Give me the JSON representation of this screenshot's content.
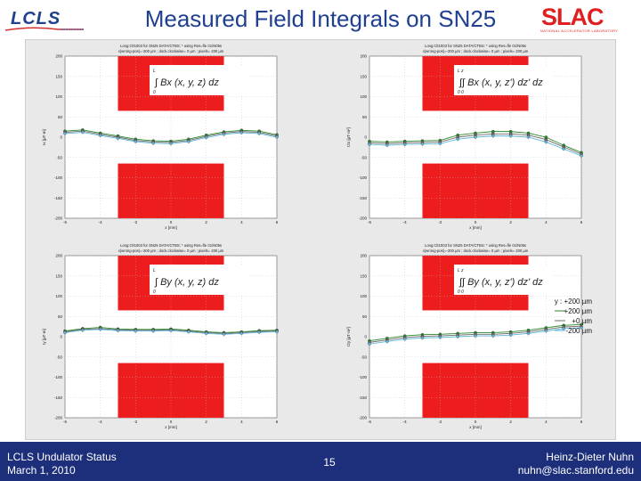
{
  "slide": {
    "title": "Measured Field Integrals on SN25",
    "logo_left": "LCLS",
    "logo_right": "SLAC",
    "logo_right_sub": "NATIONAL ACCELERATOR LABORATORY",
    "footer_left_line1": "LCLS Undulator Status",
    "footer_left_line2": "March 1, 2010",
    "page_number": "15",
    "footer_right_line1": "Heinz-Dieter Nuhn",
    "footer_right_line2": "nuhn@slac.stanford.edu"
  },
  "legend": {
    "title": "y : +200 µm",
    "entries": [
      "+200 µm",
      "+0 µm",
      "-200 µm"
    ]
  },
  "colors": {
    "title": "#1f3f8f",
    "footer_bg": "#1d2f7a",
    "red_box": "#ee1d1d",
    "series_plus": "#2a8a2a",
    "series_zero": "#6a6a6a",
    "series_minus": "#63b5d8"
  },
  "chart_data": [
    {
      "type": "line",
      "id": "tl",
      "header_line1": "Long:ClI1003 for SN25 DATA/CTBS: * using Res=fle 01/N05s",
      "header_line2": "x(wrong-pos)=-200 µm ; dock.clockwise= 0 µm ; pixels= 200 µm",
      "formula_main": "∫ Bx (x, y, z) dz",
      "formula_lower": "0",
      "formula_upper": "L",
      "xlabel": "x [mm]",
      "ylabel": "Ix [µT·m]",
      "xlim": [
        -6,
        6
      ],
      "ylim": [
        -200,
        200
      ],
      "xticks": [
        -6,
        -4,
        -2,
        0,
        2,
        4,
        6
      ],
      "xtick_labels": [
        "-6",
        "-4",
        "-2",
        "0",
        "2",
        "4",
        "6"
      ],
      "yticks": [
        -200,
        -150,
        -100,
        -50,
        0,
        50,
        100,
        150,
        200
      ],
      "ytick_labels": [
        "-200",
        "-150",
        "-100",
        "-50",
        "0",
        "50",
        "100",
        "150",
        "200"
      ],
      "red_boxes": [
        {
          "x": [
            -3,
            3
          ],
          "y": [
            65,
            200
          ]
        },
        {
          "x": [
            -3,
            3
          ],
          "y": [
            -200,
            -65
          ]
        }
      ],
      "x": [
        -6,
        -5,
        -4,
        -3,
        -2,
        -1,
        0,
        1,
        2,
        3,
        4,
        5,
        6
      ],
      "series": [
        {
          "name": "+200 µm",
          "values": [
            15,
            18,
            10,
            3,
            -5,
            -9,
            -10,
            -5,
            5,
            13,
            17,
            15,
            6
          ]
        },
        {
          "name": "+0 µm",
          "values": [
            12,
            15,
            7,
            0,
            -8,
            -12,
            -13,
            -8,
            2,
            10,
            14,
            12,
            3
          ]
        },
        {
          "name": "-200 µm",
          "values": [
            9,
            12,
            4,
            -3,
            -11,
            -15,
            -16,
            -11,
            -1,
            7,
            11,
            9,
            0
          ]
        }
      ]
    },
    {
      "type": "line",
      "id": "tr",
      "header_line1": "Long:ClI1003 for SN25 DATA/CTBS: * using Res=fle 01/N05s",
      "header_line2": "x(wrong-pos)=-200 µm ; dock.clockwise= 0 µm ; pixels= 200 µm",
      "formula_main": "∫∫ Bx (x, y, z') dz' dz",
      "formula_lower": "0 0",
      "formula_upper": "L z",
      "xlabel": "x [mm]",
      "ylabel": "I2x [µT·m²]",
      "xlim": [
        -6,
        6
      ],
      "ylim": [
        -200,
        200
      ],
      "xticks": [
        -6,
        -4,
        -2,
        0,
        2,
        4,
        6
      ],
      "xtick_labels": [
        "-6",
        "-4",
        "-2",
        "0",
        "2",
        "4",
        "6"
      ],
      "yticks": [
        -200,
        -150,
        -100,
        -50,
        0,
        50,
        100,
        150,
        200
      ],
      "ytick_labels": [
        "-200",
        "-150",
        "-100",
        "-50",
        "0",
        "50",
        "100",
        "150",
        "200"
      ],
      "red_boxes": [
        {
          "x": [
            -3,
            3
          ],
          "y": [
            65,
            200
          ]
        },
        {
          "x": [
            -3,
            3
          ],
          "y": [
            -200,
            -65
          ]
        }
      ],
      "x": [
        -6,
        -5,
        -4,
        -3,
        -2,
        -1,
        0,
        1,
        2,
        3,
        4,
        5,
        6
      ],
      "series": [
        {
          "name": "+200 µm",
          "values": [
            -10,
            -12,
            -10,
            -9,
            -8,
            5,
            10,
            14,
            14,
            10,
            0,
            -20,
            -38
          ]
        },
        {
          "name": "+0 µm",
          "values": [
            -14,
            -16,
            -14,
            -13,
            -12,
            0,
            5,
            8,
            8,
            5,
            -6,
            -24,
            -42
          ]
        },
        {
          "name": "-200 µm",
          "values": [
            -18,
            -20,
            -18,
            -17,
            -16,
            -5,
            0,
            3,
            3,
            0,
            -12,
            -29,
            -46
          ]
        }
      ]
    },
    {
      "type": "line",
      "id": "bl",
      "header_line1": "Long:ClI1003 for SN25 DATA/CTBS: * using Res=fle 01/N05s",
      "header_line2": "x(wrong-pos)=-200 µm ; dock.clockwise= 0 µm ; pixels= 200 µm",
      "formula_main": "∫ By (x, y, z) dz",
      "formula_lower": "0",
      "formula_upper": "L",
      "xlabel": "x [mm]",
      "ylabel": "Iy [µT·m]",
      "xlim": [
        -6,
        6
      ],
      "ylim": [
        -200,
        200
      ],
      "xticks": [
        -6,
        -4,
        -2,
        0,
        2,
        4,
        6
      ],
      "xtick_labels": [
        "-6",
        "-4",
        "-2",
        "0",
        "2",
        "4",
        "6"
      ],
      "yticks": [
        -200,
        -150,
        -100,
        -50,
        0,
        50,
        100,
        150,
        200
      ],
      "ytick_labels": [
        "-200",
        "-150",
        "-100",
        "-50",
        "0",
        "50",
        "100",
        "150",
        "200"
      ],
      "red_boxes": [
        {
          "x": [
            -3,
            3
          ],
          "y": [
            65,
            200
          ]
        },
        {
          "x": [
            -3,
            3
          ],
          "y": [
            -200,
            -65
          ]
        }
      ],
      "x": [
        -6,
        -5,
        -4,
        -3,
        -2,
        -1,
        0,
        1,
        2,
        3,
        4,
        5,
        6
      ],
      "series": [
        {
          "name": "+200 µm",
          "values": [
            14,
            20,
            23,
            19,
            18,
            18,
            19,
            16,
            12,
            10,
            12,
            15,
            16
          ]
        },
        {
          "name": "+0 µm",
          "values": [
            12,
            18,
            20,
            17,
            16,
            16,
            17,
            14,
            10,
            8,
            10,
            13,
            14
          ]
        },
        {
          "name": "-200 µm",
          "values": [
            10,
            16,
            18,
            15,
            14,
            14,
            15,
            12,
            8,
            6,
            8,
            11,
            12
          ]
        }
      ]
    },
    {
      "type": "line",
      "id": "br",
      "header_line1": "Long:ClI1003 for SN25 DATA/CTBS: * using Res=fle 01/N05s",
      "header_line2": "x(wrong-pos)=-200 µm ; dock.clockwise= 0 µm ; pixels= 200 µm",
      "formula_main": "∫∫ By (x, y, z') dz' dz",
      "formula_lower": "0 0",
      "formula_upper": "L z",
      "xlabel": "x [mm]",
      "ylabel": "I2y [µT·m²]",
      "xlim": [
        -6,
        6
      ],
      "ylim": [
        -200,
        200
      ],
      "xticks": [
        -6,
        -4,
        -2,
        0,
        2,
        4,
        6
      ],
      "xtick_labels": [
        "-6",
        "-4",
        "-2",
        "0",
        "2",
        "4",
        "6"
      ],
      "yticks": [
        -200,
        -150,
        -100,
        -50,
        0,
        50,
        100,
        150,
        200
      ],
      "ytick_labels": [
        "-200",
        "-150",
        "-100",
        "-50",
        "0",
        "50",
        "100",
        "150",
        "200"
      ],
      "red_boxes": [
        {
          "x": [
            -3,
            3
          ],
          "y": [
            65,
            200
          ]
        },
        {
          "x": [
            -3,
            3
          ],
          "y": [
            -200,
            -65
          ]
        }
      ],
      "x": [
        -6,
        -5,
        -4,
        -3,
        -2,
        -1,
        0,
        1,
        2,
        3,
        4,
        5,
        6
      ],
      "series": [
        {
          "name": "+200 µm",
          "values": [
            -10,
            -4,
            2,
            5,
            6,
            8,
            10,
            10,
            12,
            16,
            22,
            28,
            30
          ]
        },
        {
          "name": "+0 µm",
          "values": [
            -14,
            -8,
            -2,
            1,
            2,
            4,
            6,
            6,
            8,
            12,
            18,
            24,
            26
          ]
        },
        {
          "name": "-200 µm",
          "values": [
            -18,
            -12,
            -6,
            -3,
            -2,
            0,
            2,
            2,
            4,
            8,
            14,
            20,
            22
          ]
        }
      ]
    }
  ]
}
